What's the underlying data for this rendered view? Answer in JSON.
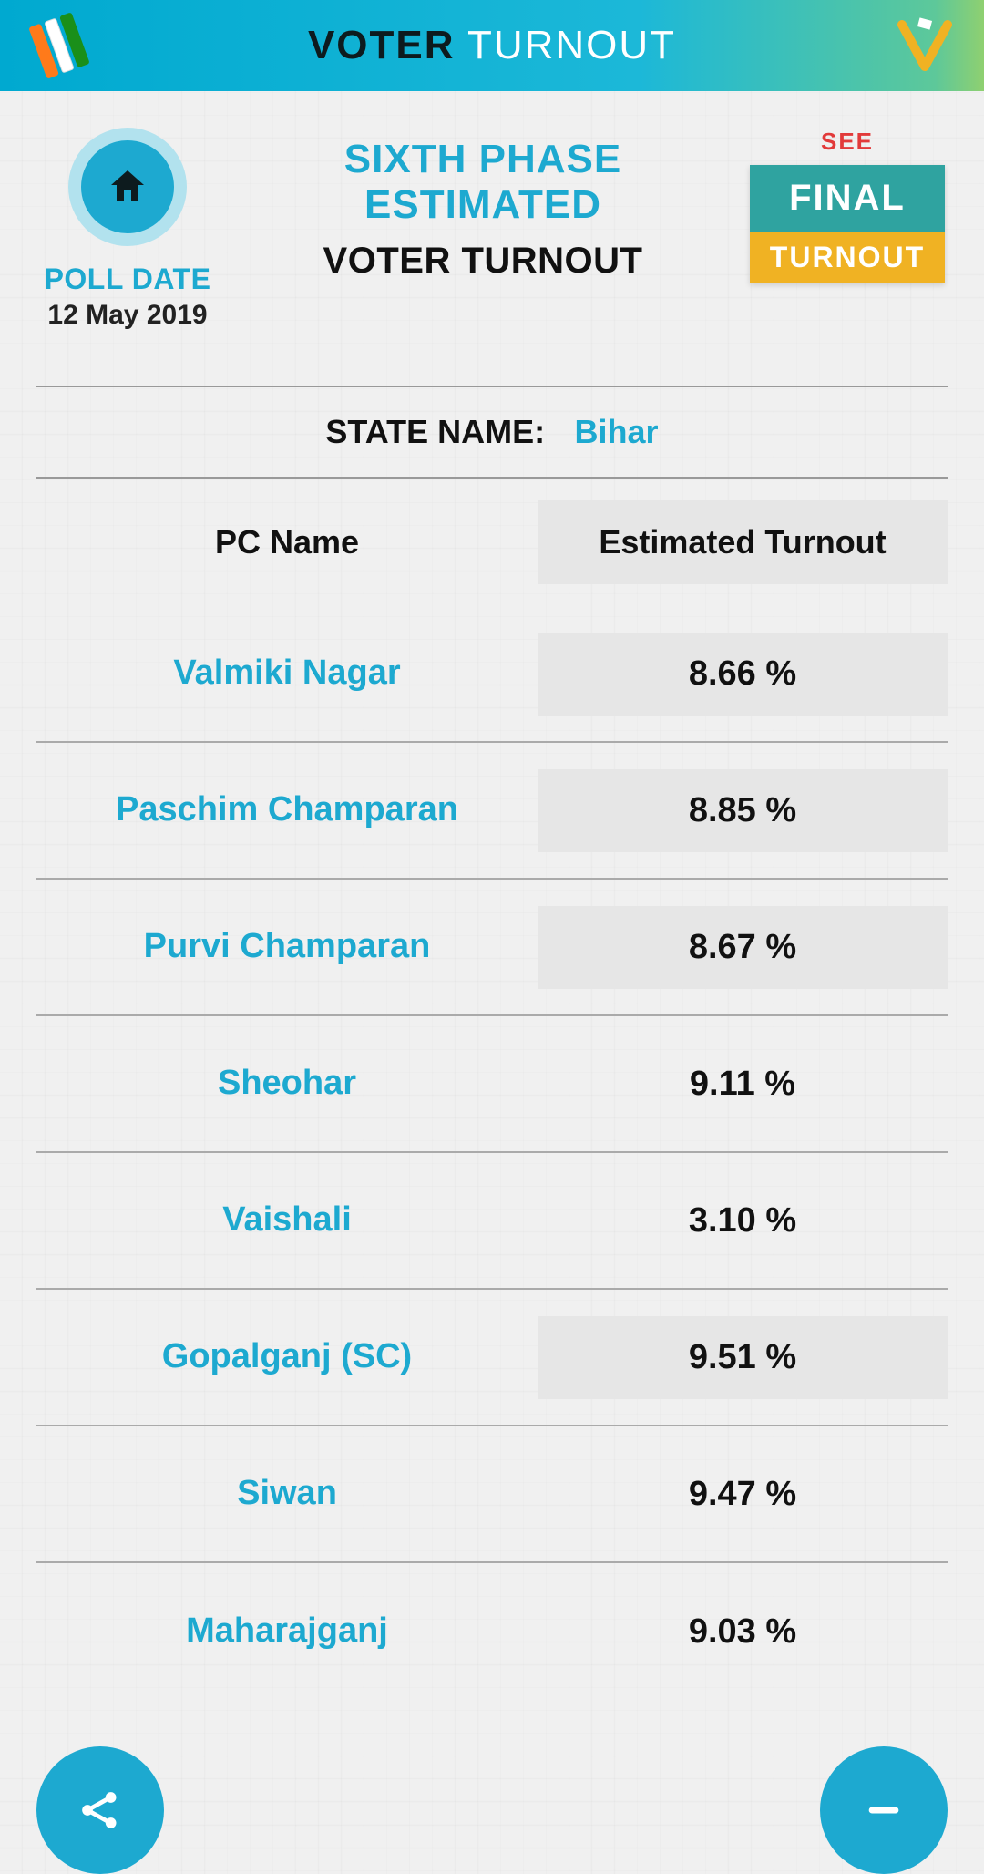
{
  "topbar": {
    "title_left": "VOTER",
    "title_right": "TURNOUT"
  },
  "header": {
    "poll_date_label": "POLL DATE",
    "poll_date_value": "12 May 2019",
    "phase_line1": "SIXTH PHASE",
    "phase_line2": "ESTIMATED",
    "subtitle": "VOTER TURNOUT",
    "see_label": "SEE",
    "final_top": "FINAL",
    "final_bottom": "TURNOUT"
  },
  "state": {
    "label": "STATE NAME:",
    "value": "Bihar"
  },
  "table": {
    "col1_header": "PC Name",
    "col2_header": "Estimated Turnout",
    "rows": [
      {
        "pc": "Valmiki Nagar",
        "turnout": "8.66 %",
        "shaded": true
      },
      {
        "pc": "Paschim Champaran",
        "turnout": "8.85 %",
        "shaded": true
      },
      {
        "pc": "Purvi Champaran",
        "turnout": "8.67 %",
        "shaded": true
      },
      {
        "pc": "Sheohar",
        "turnout": "9.11 %",
        "shaded": false
      },
      {
        "pc": "Vaishali",
        "turnout": "3.10 %",
        "shaded": false
      },
      {
        "pc": "Gopalganj (SC)",
        "turnout": "9.51 %",
        "shaded": true
      },
      {
        "pc": "Siwan",
        "turnout": "9.47 %",
        "shaded": false
      },
      {
        "pc": "Maharajganj",
        "turnout": "9.03 %",
        "shaded": false
      }
    ]
  },
  "colors": {
    "accent": "#1da9d0",
    "shade_bg": "#e6e6e6"
  }
}
